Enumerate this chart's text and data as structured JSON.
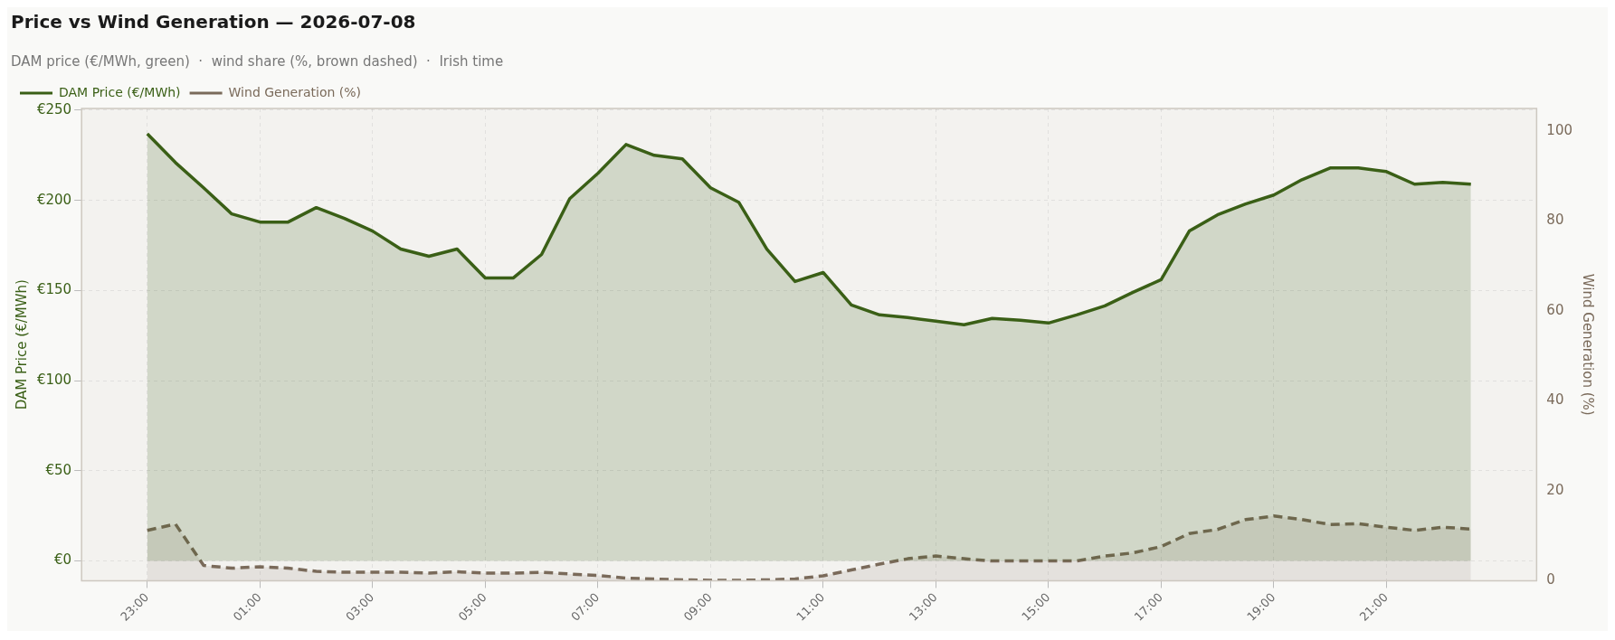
{
  "chart_data": {
    "type": "area",
    "title": "Price vs Wind Generation — 2026-07-08",
    "subtitle": "DAM price (€/MWh, green)  ·  wind share (%, brown dashed)  ·  Irish time",
    "ylabel": "DAM Price (€/MWh)",
    "y2label": "Wind Generation (%)",
    "x": [
      "2026-07-07T23:00",
      "2026-07-07T23:30",
      "2026-07-08T00:00",
      "2026-07-08T00:30",
      "2026-07-08T01:00",
      "2026-07-08T01:30",
      "2026-07-08T02:00",
      "2026-07-08T02:30",
      "2026-07-08T03:00",
      "2026-07-08T03:30",
      "2026-07-08T04:00",
      "2026-07-08T04:30",
      "2026-07-08T05:00",
      "2026-07-08T05:30",
      "2026-07-08T06:00",
      "2026-07-08T06:30",
      "2026-07-08T07:00",
      "2026-07-08T07:30",
      "2026-07-08T08:00",
      "2026-07-08T08:30",
      "2026-07-08T09:00",
      "2026-07-08T09:30",
      "2026-07-08T10:00",
      "2026-07-08T10:30",
      "2026-07-08T11:00",
      "2026-07-08T11:30",
      "2026-07-08T12:00",
      "2026-07-08T12:30",
      "2026-07-08T13:00",
      "2026-07-08T13:30",
      "2026-07-08T14:00",
      "2026-07-08T14:30",
      "2026-07-08T15:00",
      "2026-07-08T15:30",
      "2026-07-08T16:00",
      "2026-07-08T16:30",
      "2026-07-08T17:00",
      "2026-07-08T17:30",
      "2026-07-08T18:00",
      "2026-07-08T18:30",
      "2026-07-08T19:00",
      "2026-07-08T19:30",
      "2026-07-08T20:00",
      "2026-07-08T20:30",
      "2026-07-08T21:00",
      "2026-07-08T21:30",
      "2026-07-08T22:00",
      "2026-07-08T22:30"
    ],
    "series": [
      {
        "name": "DAM Price (€/MWh)",
        "color": "#3a5f16",
        "line_style": "solid",
        "values": [
          237,
          221,
          207,
          192.5,
          188,
          188,
          196,
          190,
          183,
          173,
          169,
          173,
          157,
          157,
          170,
          201,
          215,
          231,
          225,
          223,
          207,
          199,
          173,
          155,
          160,
          142,
          136.5,
          135,
          133,
          131,
          134.5,
          133.5,
          132,
          136.5,
          141.5,
          149,
          156,
          183,
          192,
          198,
          203,
          211.5,
          218,
          218,
          216,
          209,
          210,
          209
        ]
      },
      {
        "name": "Wind Generation (%)",
        "color": "#7a6a5a",
        "axis": "y2",
        "line_style": "dashed",
        "values": [
          11.2,
          12.6,
          3.4,
          2.8,
          3.1,
          2.8,
          2.1,
          1.9,
          1.9,
          1.9,
          1.7,
          2.0,
          1.7,
          1.7,
          1.9,
          1.5,
          1.2,
          0.6,
          0.4,
          0.2,
          0.1,
          0.1,
          0.2,
          0.4,
          1.1,
          2.4,
          3.7,
          4.9,
          5.5,
          4.9,
          4.4,
          4.4,
          4.4,
          4.4,
          5.5,
          6.2,
          7.6,
          10.5,
          11.4,
          13.6,
          14.4,
          13.6,
          12.5,
          12.7,
          11.9,
          11.2,
          11.9,
          11.5
        ]
      }
    ],
    "xlim": [
      "2026-07-07T21:50",
      "2026-07-08T23:40"
    ],
    "xticks": [
      {
        "value": "2026-07-07T23:00",
        "label": "23:00"
      },
      {
        "value": "2026-07-08T01:00",
        "label": "01:00"
      },
      {
        "value": "2026-07-08T03:00",
        "label": "03:00"
      },
      {
        "value": "2026-07-08T05:00",
        "label": "05:00"
      },
      {
        "value": "2026-07-08T07:00",
        "label": "07:00"
      },
      {
        "value": "2026-07-08T09:00",
        "label": "09:00"
      },
      {
        "value": "2026-07-08T11:00",
        "label": "11:00"
      },
      {
        "value": "2026-07-08T13:00",
        "label": "13:00"
      },
      {
        "value": "2026-07-08T15:00",
        "label": "15:00"
      },
      {
        "value": "2026-07-08T17:00",
        "label": "17:00"
      },
      {
        "value": "2026-07-08T19:00",
        "label": "19:00"
      },
      {
        "value": "2026-07-08T21:00",
        "label": "21:00"
      }
    ],
    "ylim": [
      -11,
      251
    ],
    "yticks": [
      {
        "value": 0,
        "label": "€0"
      },
      {
        "value": 50,
        "label": "€50"
      },
      {
        "value": 100,
        "label": "€100"
      },
      {
        "value": 150,
        "label": "€150"
      },
      {
        "value": 200,
        "label": "€200"
      },
      {
        "value": 250,
        "label": "€250"
      }
    ],
    "y2lim": [
      0,
      105
    ],
    "y2ticks": [
      0,
      20,
      40,
      60,
      80,
      100
    ],
    "grid": true,
    "legend": "top left"
  }
}
